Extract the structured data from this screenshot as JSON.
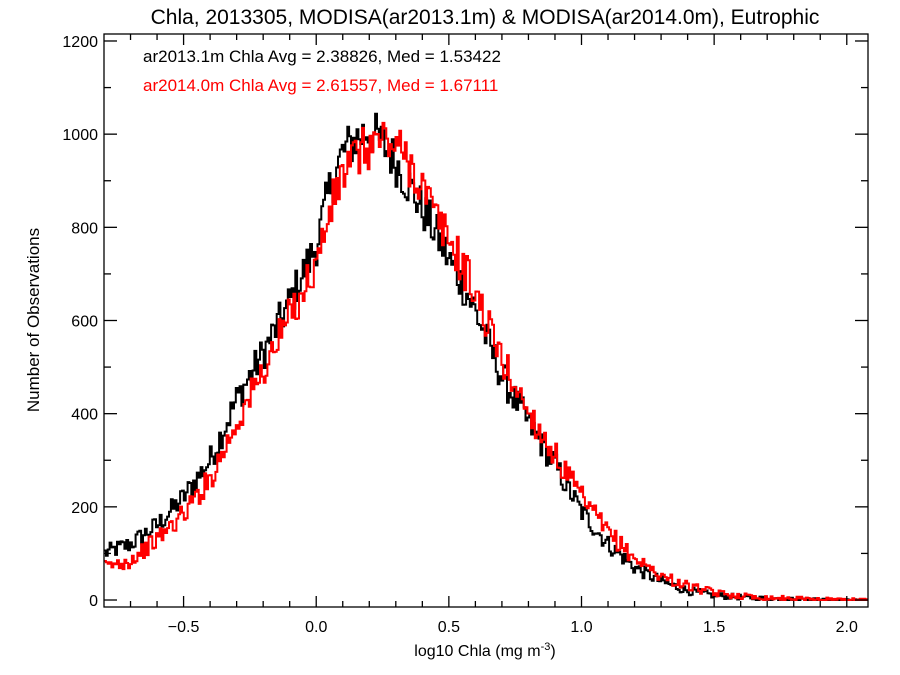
{
  "chart_data": {
    "type": "line",
    "step": true,
    "title": "Chla, 2013305, MODISA(ar2013.1m) & MODISA(ar2014.0m), Eutrophic",
    "xlabel_main": "log10 Chla (mg m",
    "xlabel_exp": "-3",
    "xlabel_close": ")",
    "ylabel": "Number of Observations",
    "xlim": [
      -0.8,
      2.08
    ],
    "ylim": [
      -15,
      1215
    ],
    "x_ticks": [
      -0.5,
      0.0,
      0.5,
      1.0,
      1.5,
      2.0
    ],
    "x_tick_labels": [
      "−0.5",
      "0.0",
      "0.5",
      "1.0",
      "1.5",
      "2.0"
    ],
    "y_ticks": [
      0,
      200,
      400,
      600,
      800,
      1000,
      1200
    ],
    "y_tick_labels": [
      "0",
      "200",
      "400",
      "600",
      "800",
      "1000",
      "1200"
    ],
    "annotations": [
      {
        "text": "ar2013.1m Chla Avg = 2.38826, Med = 1.53422",
        "color": "#000000"
      },
      {
        "text": "ar2014.0m Chla Avg = 2.61557, Med = 1.67111",
        "color": "#ff0000"
      }
    ],
    "series": [
      {
        "color": "#000000",
        "points": [
          [
            -0.8,
            100
          ],
          [
            -0.7,
            120
          ],
          [
            -0.6,
            160
          ],
          [
            -0.5,
            220
          ],
          [
            -0.4,
            300
          ],
          [
            -0.3,
            430
          ],
          [
            -0.2,
            530
          ],
          [
            -0.1,
            640
          ],
          [
            0.0,
            760
          ],
          [
            0.05,
            880
          ],
          [
            0.1,
            960
          ],
          [
            0.15,
            990
          ],
          [
            0.2,
            1010
          ],
          [
            0.25,
            980
          ],
          [
            0.3,
            940
          ],
          [
            0.35,
            890
          ],
          [
            0.4,
            840
          ],
          [
            0.45,
            790
          ],
          [
            0.5,
            730
          ],
          [
            0.55,
            680
          ],
          [
            0.6,
            620
          ],
          [
            0.7,
            480
          ],
          [
            0.8,
            380
          ],
          [
            0.9,
            290
          ],
          [
            1.0,
            190
          ],
          [
            1.1,
            120
          ],
          [
            1.2,
            70
          ],
          [
            1.3,
            40
          ],
          [
            1.4,
            20
          ],
          [
            1.5,
            10
          ],
          [
            1.6,
            6
          ],
          [
            1.7,
            3
          ],
          [
            1.8,
            2
          ],
          [
            1.9,
            1
          ],
          [
            2.0,
            0
          ],
          [
            2.08,
            0
          ]
        ]
      },
      {
        "color": "#ff0000",
        "points": [
          [
            -0.8,
            70
          ],
          [
            -0.7,
            85
          ],
          [
            -0.6,
            130
          ],
          [
            -0.5,
            185
          ],
          [
            -0.4,
            260
          ],
          [
            -0.3,
            380
          ],
          [
            -0.2,
            490
          ],
          [
            -0.1,
            610
          ],
          [
            0.0,
            720
          ],
          [
            0.05,
            830
          ],
          [
            0.1,
            915
          ],
          [
            0.15,
            950
          ],
          [
            0.2,
            975
          ],
          [
            0.25,
            990
          ],
          [
            0.3,
            975
          ],
          [
            0.35,
            940
          ],
          [
            0.4,
            890
          ],
          [
            0.45,
            820
          ],
          [
            0.5,
            775
          ],
          [
            0.55,
            720
          ],
          [
            0.6,
            660
          ],
          [
            0.7,
            515
          ],
          [
            0.8,
            405
          ],
          [
            0.9,
            310
          ],
          [
            1.0,
            220
          ],
          [
            1.1,
            145
          ],
          [
            1.2,
            90
          ],
          [
            1.3,
            52
          ],
          [
            1.4,
            30
          ],
          [
            1.5,
            15
          ],
          [
            1.6,
            9
          ],
          [
            1.7,
            5
          ],
          [
            1.8,
            3
          ],
          [
            1.9,
            2
          ],
          [
            2.0,
            1
          ],
          [
            2.08,
            0
          ]
        ]
      }
    ]
  }
}
